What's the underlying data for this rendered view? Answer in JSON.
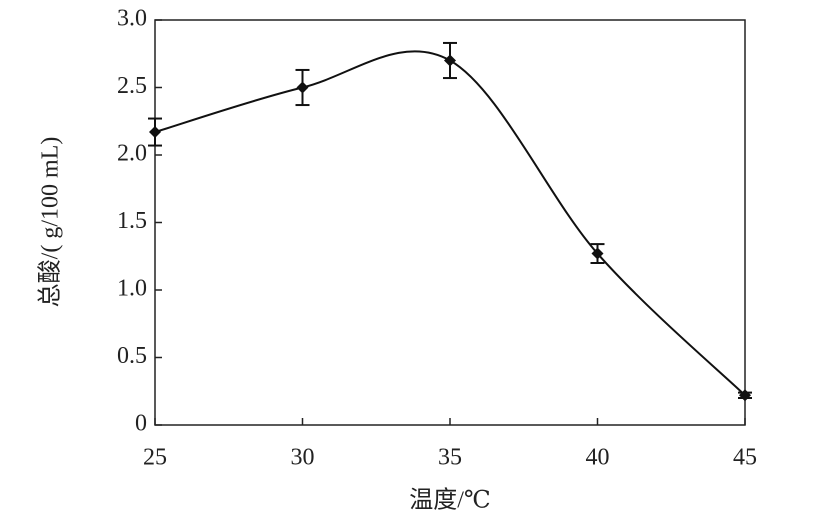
{
  "chart_data": {
    "type": "line",
    "x_label": "温度/℃",
    "y_label": "总酸/( g/100 mL)",
    "x": [
      25,
      30,
      35,
      40,
      45
    ],
    "series": [
      {
        "color": "#111111",
        "values": [
          2.17,
          2.5,
          2.7,
          1.27,
          0.22
        ],
        "errors": [
          0.1,
          0.13,
          0.13,
          0.07,
          0.02
        ]
      }
    ],
    "xlim": [
      25,
      45
    ],
    "xticks": [
      25,
      30,
      35,
      40,
      45
    ],
    "ylim": [
      0,
      3
    ],
    "yticks": [
      0,
      0.5,
      {
        "value": 1,
        "label": "1.0"
      },
      1.5,
      {
        "value": 2,
        "label": "2.0"
      },
      2.5,
      {
        "value": 3,
        "label": "3.0"
      }
    ],
    "smooth": true
  }
}
